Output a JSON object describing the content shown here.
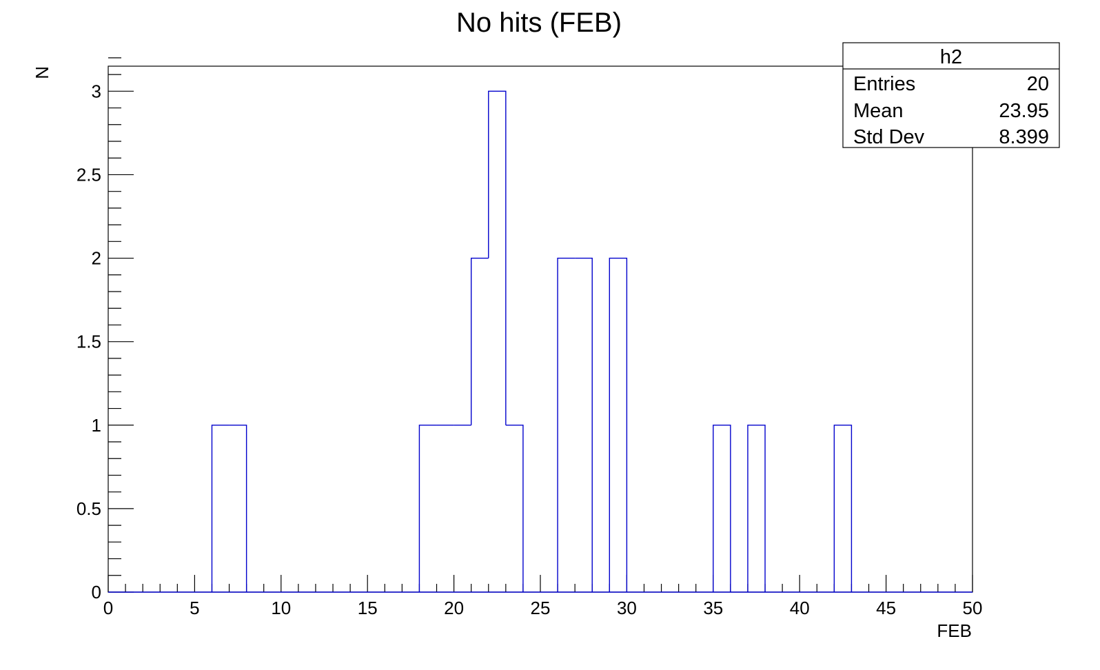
{
  "chart_data": {
    "type": "bar",
    "style": "step-histogram",
    "title": "No hits (FEB)",
    "xlabel": "FEB",
    "ylabel": "N",
    "xlim": [
      0,
      50
    ],
    "ylim": [
      0,
      3.15
    ],
    "bin_width": 1,
    "x_ticks": [
      "0",
      "5",
      "10",
      "15",
      "20",
      "25",
      "30",
      "35",
      "40",
      "45",
      "50"
    ],
    "y_ticks": [
      "0",
      "0.5",
      "1",
      "1.5",
      "2",
      "2.5",
      "3"
    ],
    "series": [
      {
        "color": "#0000cc",
        "bins": [
          {
            "x": 6,
            "value": 1
          },
          {
            "x": 7,
            "value": 1
          },
          {
            "x": 18,
            "value": 1
          },
          {
            "x": 19,
            "value": 1
          },
          {
            "x": 20,
            "value": 1
          },
          {
            "x": 21,
            "value": 2
          },
          {
            "x": 22,
            "value": 3
          },
          {
            "x": 23,
            "value": 1
          },
          {
            "x": 26,
            "value": 2
          },
          {
            "x": 27,
            "value": 2
          },
          {
            "x": 29,
            "value": 2
          },
          {
            "x": 35,
            "value": 1
          },
          {
            "x": 37,
            "value": 1
          },
          {
            "x": 42,
            "value": 1
          }
        ]
      }
    ],
    "stats_box": {
      "name": "h2",
      "rows": [
        {
          "label": "Entries",
          "value": "20"
        },
        {
          "label": "Mean",
          "value": "23.95"
        },
        {
          "label": "Std Dev",
          "value": "8.399"
        }
      ]
    },
    "legend_position": "top-right",
    "grid": false
  }
}
